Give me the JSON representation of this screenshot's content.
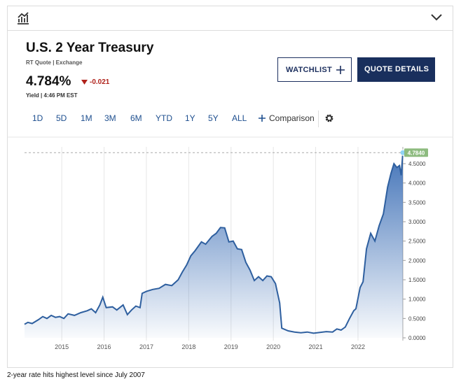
{
  "header": {
    "title": "U.S. 2 Year Treasury",
    "source": "RT Quote | Exchange",
    "price": "4.784%",
    "change": "-0.021",
    "time": "Yield | 4:46 PM EST"
  },
  "buttons": {
    "watchlist": "WATCHLIST",
    "quote_details": "QUOTE DETAILS"
  },
  "range_buttons": [
    "1D",
    "5D",
    "1M",
    "3M",
    "6M",
    "YTD",
    "1Y",
    "5Y",
    "ALL"
  ],
  "comparison": "Comparison",
  "caption": "2-year rate hits highest level since July 2007",
  "chart_data": {
    "type": "line",
    "x": [
      2014.12,
      2014.2,
      2014.3,
      2014.45,
      2014.55,
      2014.65,
      2014.75,
      2014.85,
      2014.95,
      2015.05,
      2015.15,
      2015.3,
      2015.45,
      2015.6,
      2015.7,
      2015.8,
      2015.9,
      2015.97,
      2016.05,
      2016.2,
      2016.3,
      2016.45,
      2016.55,
      2016.65,
      2016.75,
      2016.85,
      2016.9,
      2017.0,
      2017.15,
      2017.3,
      2017.45,
      2017.6,
      2017.75,
      2017.85,
      2017.95,
      2018.05,
      2018.15,
      2018.3,
      2018.4,
      2018.55,
      2018.65,
      2018.75,
      2018.85,
      2018.95,
      2019.05,
      2019.15,
      2019.25,
      2019.35,
      2019.45,
      2019.55,
      2019.65,
      2019.75,
      2019.85,
      2019.95,
      2020.05,
      2020.15,
      2020.2,
      2020.35,
      2020.5,
      2020.65,
      2020.8,
      2020.95,
      2021.1,
      2021.25,
      2021.4,
      2021.5,
      2021.6,
      2021.7,
      2021.8,
      2021.9,
      2021.95,
      2022.05,
      2022.12,
      2022.2,
      2022.3,
      2022.4,
      2022.5,
      2022.6,
      2022.7,
      2022.78,
      2022.85,
      2022.92,
      2022.98,
      2023.02,
      2023.06
    ],
    "series": [
      {
        "color": "#2e5f9f",
        "values": [
          0.35,
          0.4,
          0.37,
          0.47,
          0.55,
          0.5,
          0.58,
          0.53,
          0.55,
          0.5,
          0.62,
          0.58,
          0.65,
          0.7,
          0.75,
          0.65,
          0.85,
          1.05,
          0.78,
          0.8,
          0.72,
          0.85,
          0.6,
          0.72,
          0.82,
          0.78,
          1.15,
          1.2,
          1.25,
          1.28,
          1.38,
          1.35,
          1.5,
          1.7,
          1.88,
          2.12,
          2.25,
          2.48,
          2.42,
          2.62,
          2.7,
          2.85,
          2.84,
          2.48,
          2.5,
          2.3,
          2.28,
          1.95,
          1.75,
          1.48,
          1.58,
          1.48,
          1.6,
          1.58,
          1.4,
          0.9,
          0.25,
          0.18,
          0.15,
          0.13,
          0.15,
          0.12,
          0.14,
          0.16,
          0.15,
          0.23,
          0.2,
          0.28,
          0.5,
          0.7,
          0.75,
          1.3,
          1.45,
          2.3,
          2.7,
          2.5,
          2.9,
          3.2,
          3.9,
          4.25,
          4.5,
          4.4,
          4.45,
          4.2,
          4.784
        ]
      }
    ],
    "current": {
      "value": 4.784,
      "label": "4.7840"
    },
    "xlim": [
      2014.12,
      2023.06
    ],
    "xticks": [
      2015,
      2016,
      2017,
      2018,
      2019,
      2020,
      2021,
      2022
    ],
    "ylim": [
      0,
      5
    ],
    "yticks": [
      {
        "value": 0,
        "label": "0.0000"
      },
      {
        "value": 0.5,
        "label": "0.5000"
      },
      {
        "value": 1,
        "label": "1.0000"
      },
      {
        "value": 1.5,
        "label": "1.5000"
      },
      {
        "value": 2,
        "label": "2.0000"
      },
      {
        "value": 2.5,
        "label": "2.5000"
      },
      {
        "value": 3,
        "label": "3.0000"
      },
      {
        "value": 3.5,
        "label": "3.5000"
      },
      {
        "value": 4,
        "label": "4.0000"
      },
      {
        "value": 4.5,
        "label": "4.5000"
      }
    ],
    "grid": true
  }
}
